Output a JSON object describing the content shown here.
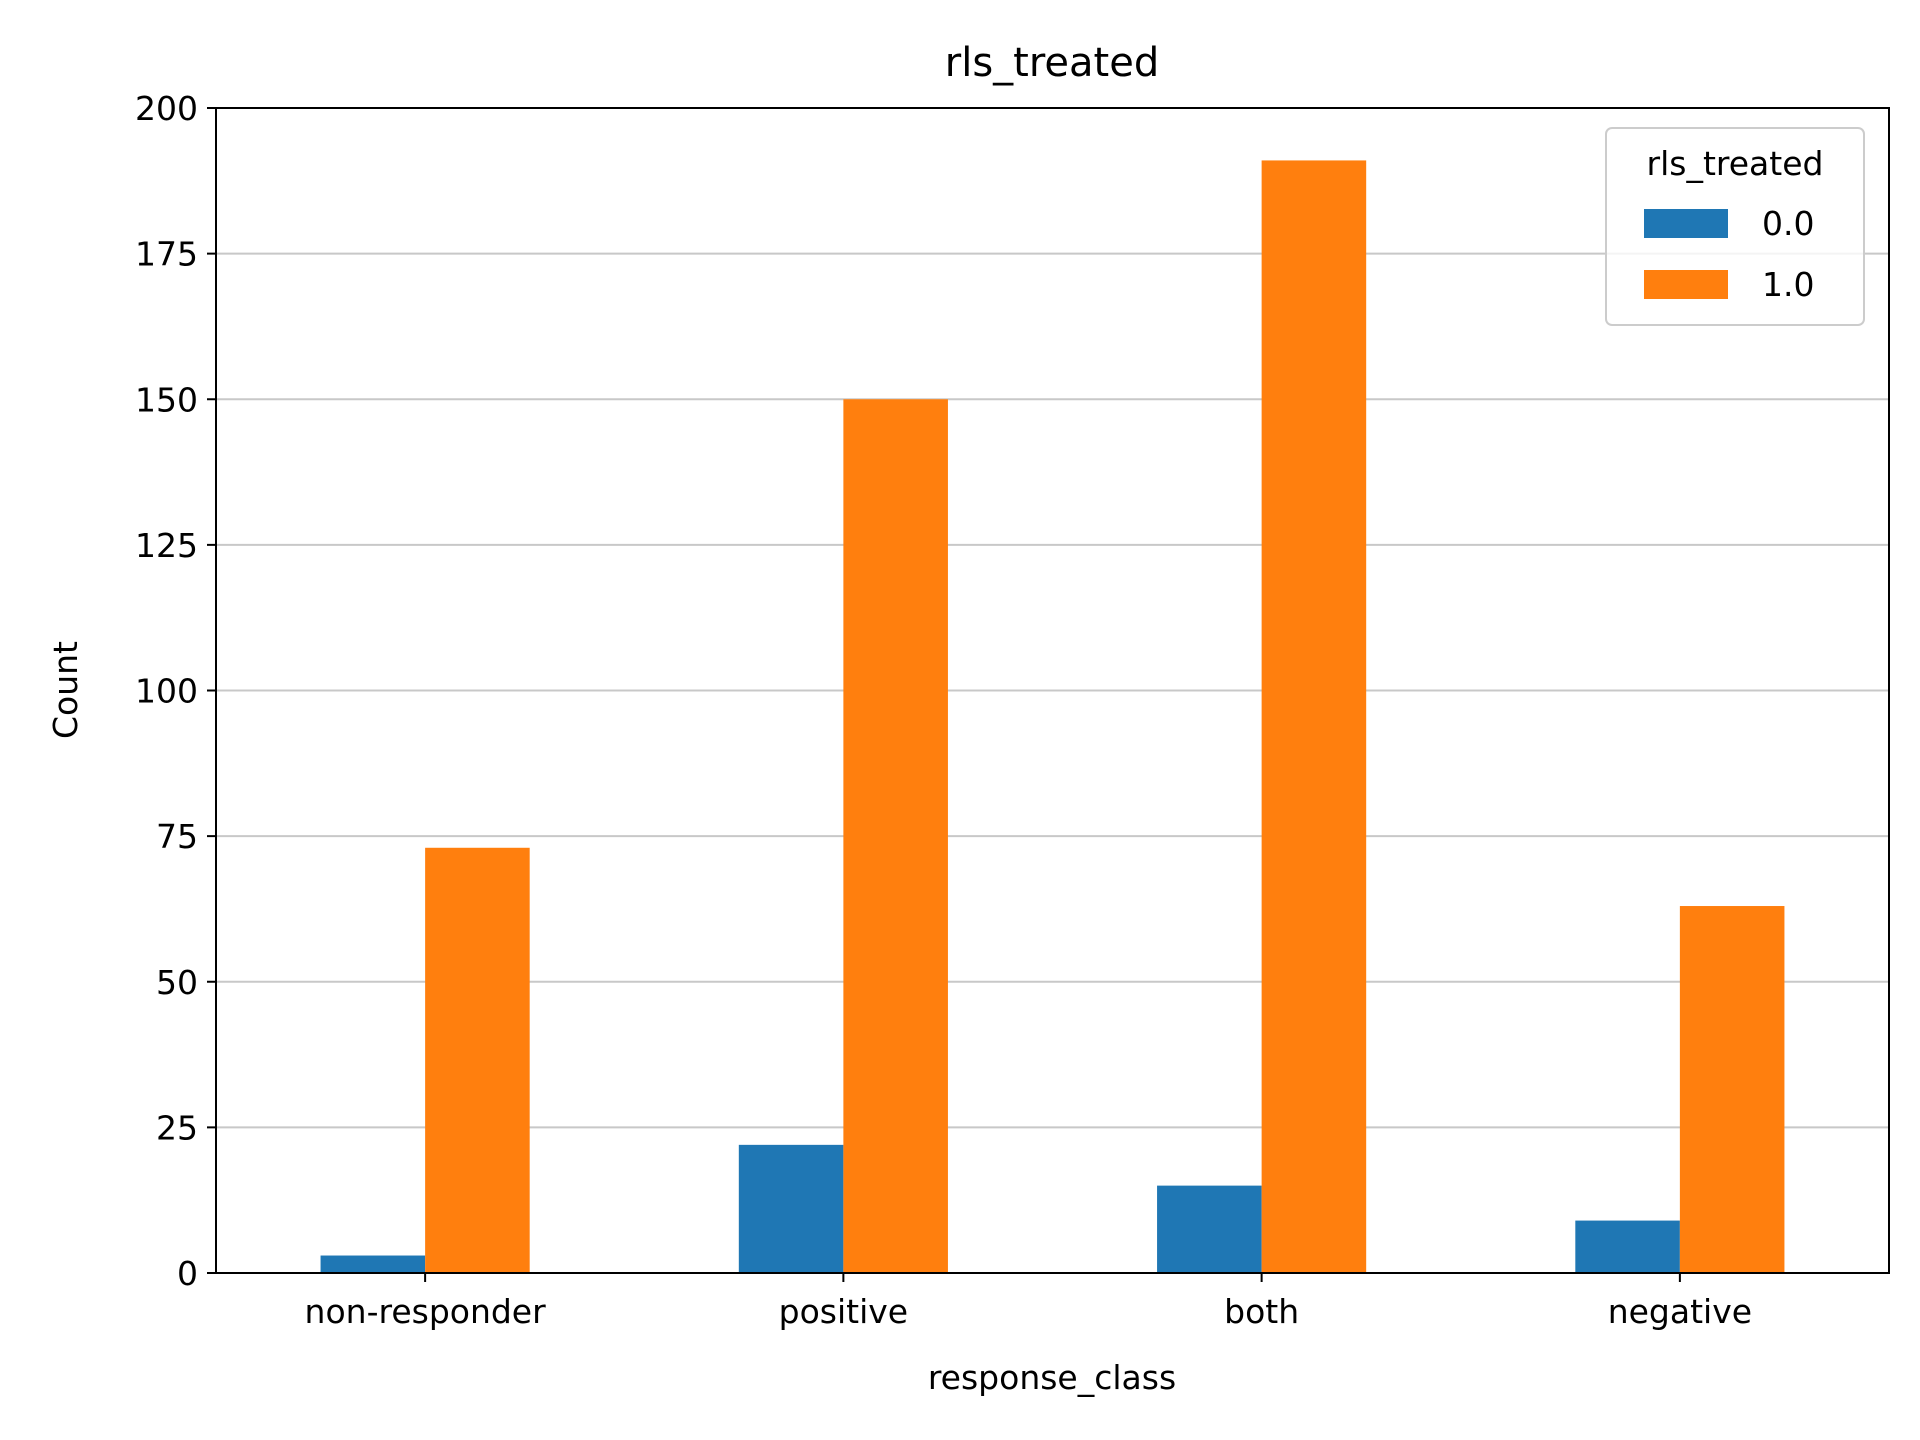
{
  "chart_data": {
    "type": "bar",
    "title": "rls_treated",
    "xlabel": "response_class",
    "ylabel": "Count",
    "categories": [
      "non-responder",
      "positive",
      "both",
      "negative"
    ],
    "series": [
      {
        "name": "0.0",
        "values": [
          3,
          22,
          15,
          9
        ],
        "color": "#1f77b4"
      },
      {
        "name": "1.0",
        "values": [
          73,
          150,
          191,
          63
        ],
        "color": "#ff7f0e"
      }
    ],
    "ylim": [
      0,
      200
    ],
    "yticks": [
      0,
      25,
      50,
      75,
      100,
      125,
      150,
      175,
      200
    ],
    "grid": "y",
    "legend": {
      "title": "rls_treated",
      "placement": "top-right"
    }
  }
}
